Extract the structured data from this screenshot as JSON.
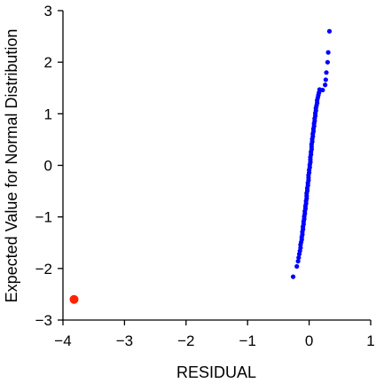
{
  "chart_data": {
    "type": "scatter",
    "xlabel": "RESIDUAL",
    "ylabel": "Expected Value for Normal Distribution",
    "xlim": [
      -4,
      1
    ],
    "ylim": [
      -3,
      3
    ],
    "xticks": [
      -4,
      -3,
      -2,
      -1,
      0,
      1
    ],
    "yticks": [
      -3,
      -2,
      -1,
      0,
      1,
      2,
      3
    ],
    "grid": false,
    "series": [
      {
        "color": "#0000ff",
        "points": [
          [
            -0.26,
            -2.16
          ],
          [
            -0.2,
            -1.96
          ],
          [
            -0.18,
            -1.86
          ],
          [
            -0.17,
            -1.79
          ],
          [
            -0.16,
            -1.72
          ],
          [
            -0.15,
            -1.66
          ],
          [
            -0.14,
            -1.6
          ],
          [
            -0.14,
            -1.54
          ],
          [
            -0.13,
            -1.49
          ],
          [
            -0.12,
            -1.44
          ],
          [
            -0.12,
            -1.39
          ],
          [
            -0.11,
            -1.34
          ],
          [
            -0.11,
            -1.29
          ],
          [
            -0.1,
            -1.24
          ],
          [
            -0.1,
            -1.19
          ],
          [
            -0.09,
            -1.14
          ],
          [
            -0.09,
            -1.09
          ],
          [
            -0.08,
            -1.04
          ],
          [
            -0.08,
            -0.99
          ],
          [
            -0.07,
            -0.94
          ],
          [
            -0.07,
            -0.89
          ],
          [
            -0.06,
            -0.84
          ],
          [
            -0.06,
            -0.79
          ],
          [
            -0.05,
            -0.74
          ],
          [
            -0.05,
            -0.69
          ],
          [
            -0.04,
            -0.64
          ],
          [
            -0.04,
            -0.59
          ],
          [
            -0.04,
            -0.54
          ],
          [
            -0.03,
            -0.49
          ],
          [
            -0.03,
            -0.44
          ],
          [
            -0.02,
            -0.39
          ],
          [
            -0.02,
            -0.34
          ],
          [
            -0.01,
            -0.29
          ],
          [
            -0.01,
            -0.24
          ],
          [
            -0.01,
            -0.19
          ],
          [
            0.0,
            -0.14
          ],
          [
            0.0,
            -0.09
          ],
          [
            0.01,
            -0.04
          ],
          [
            0.01,
            0.01
          ],
          [
            0.02,
            0.06
          ],
          [
            0.02,
            0.11
          ],
          [
            0.02,
            0.16
          ],
          [
            0.03,
            0.21
          ],
          [
            0.03,
            0.26
          ],
          [
            0.04,
            0.31
          ],
          [
            0.04,
            0.36
          ],
          [
            0.04,
            0.41
          ],
          [
            0.05,
            0.46
          ],
          [
            0.05,
            0.51
          ],
          [
            0.06,
            0.56
          ],
          [
            0.06,
            0.61
          ],
          [
            0.07,
            0.66
          ],
          [
            0.07,
            0.71
          ],
          [
            0.08,
            0.76
          ],
          [
            0.08,
            0.81
          ],
          [
            0.09,
            0.86
          ],
          [
            0.09,
            0.91
          ],
          [
            0.1,
            0.96
          ],
          [
            0.1,
            1.01
          ],
          [
            0.11,
            1.06
          ],
          [
            0.11,
            1.11
          ],
          [
            0.12,
            1.16
          ],
          [
            0.13,
            1.21
          ],
          [
            0.13,
            1.26
          ],
          [
            0.14,
            1.31
          ],
          [
            0.15,
            1.36
          ],
          [
            0.16,
            1.41
          ],
          [
            0.17,
            1.47
          ],
          [
            0.22,
            1.46
          ],
          [
            0.26,
            1.56
          ],
          [
            0.27,
            1.66
          ],
          [
            0.28,
            1.8
          ],
          [
            0.3,
            2.0
          ],
          [
            0.31,
            2.19
          ],
          [
            0.33,
            2.6
          ]
        ]
      },
      {
        "color": "#ff2200",
        "points": [
          [
            -3.82,
            -2.6
          ]
        ]
      }
    ]
  }
}
